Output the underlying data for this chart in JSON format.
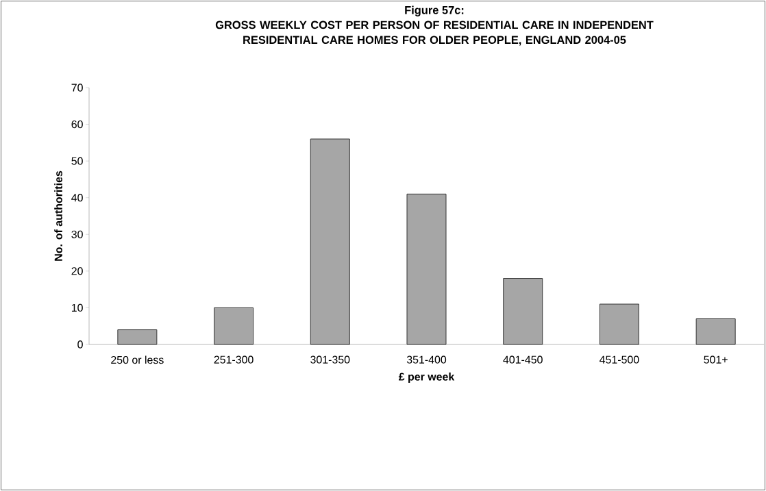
{
  "chart_data": {
    "type": "bar",
    "title": "Figure 57c:",
    "subtitle": "GROSS WEEKLY COST PER PERSON OF RESIDENTIAL CARE IN INDEPENDENT RESIDENTIAL CARE HOMES FOR OLDER PEOPLE, ENGLAND 2004-05",
    "xlabel": "£ per week",
    "ylabel": "No. of authorities",
    "categories": [
      "250 or less",
      "251-300",
      "301-350",
      "351-400",
      "401-450",
      "451-500",
      "501+"
    ],
    "values": [
      4,
      10,
      56,
      41,
      18,
      11,
      7
    ],
    "color": "#a6a6a6",
    "ylim": [
      0,
      70
    ],
    "yticks": [
      0,
      10,
      20,
      30,
      40,
      50,
      60,
      70
    ],
    "grid": false
  }
}
